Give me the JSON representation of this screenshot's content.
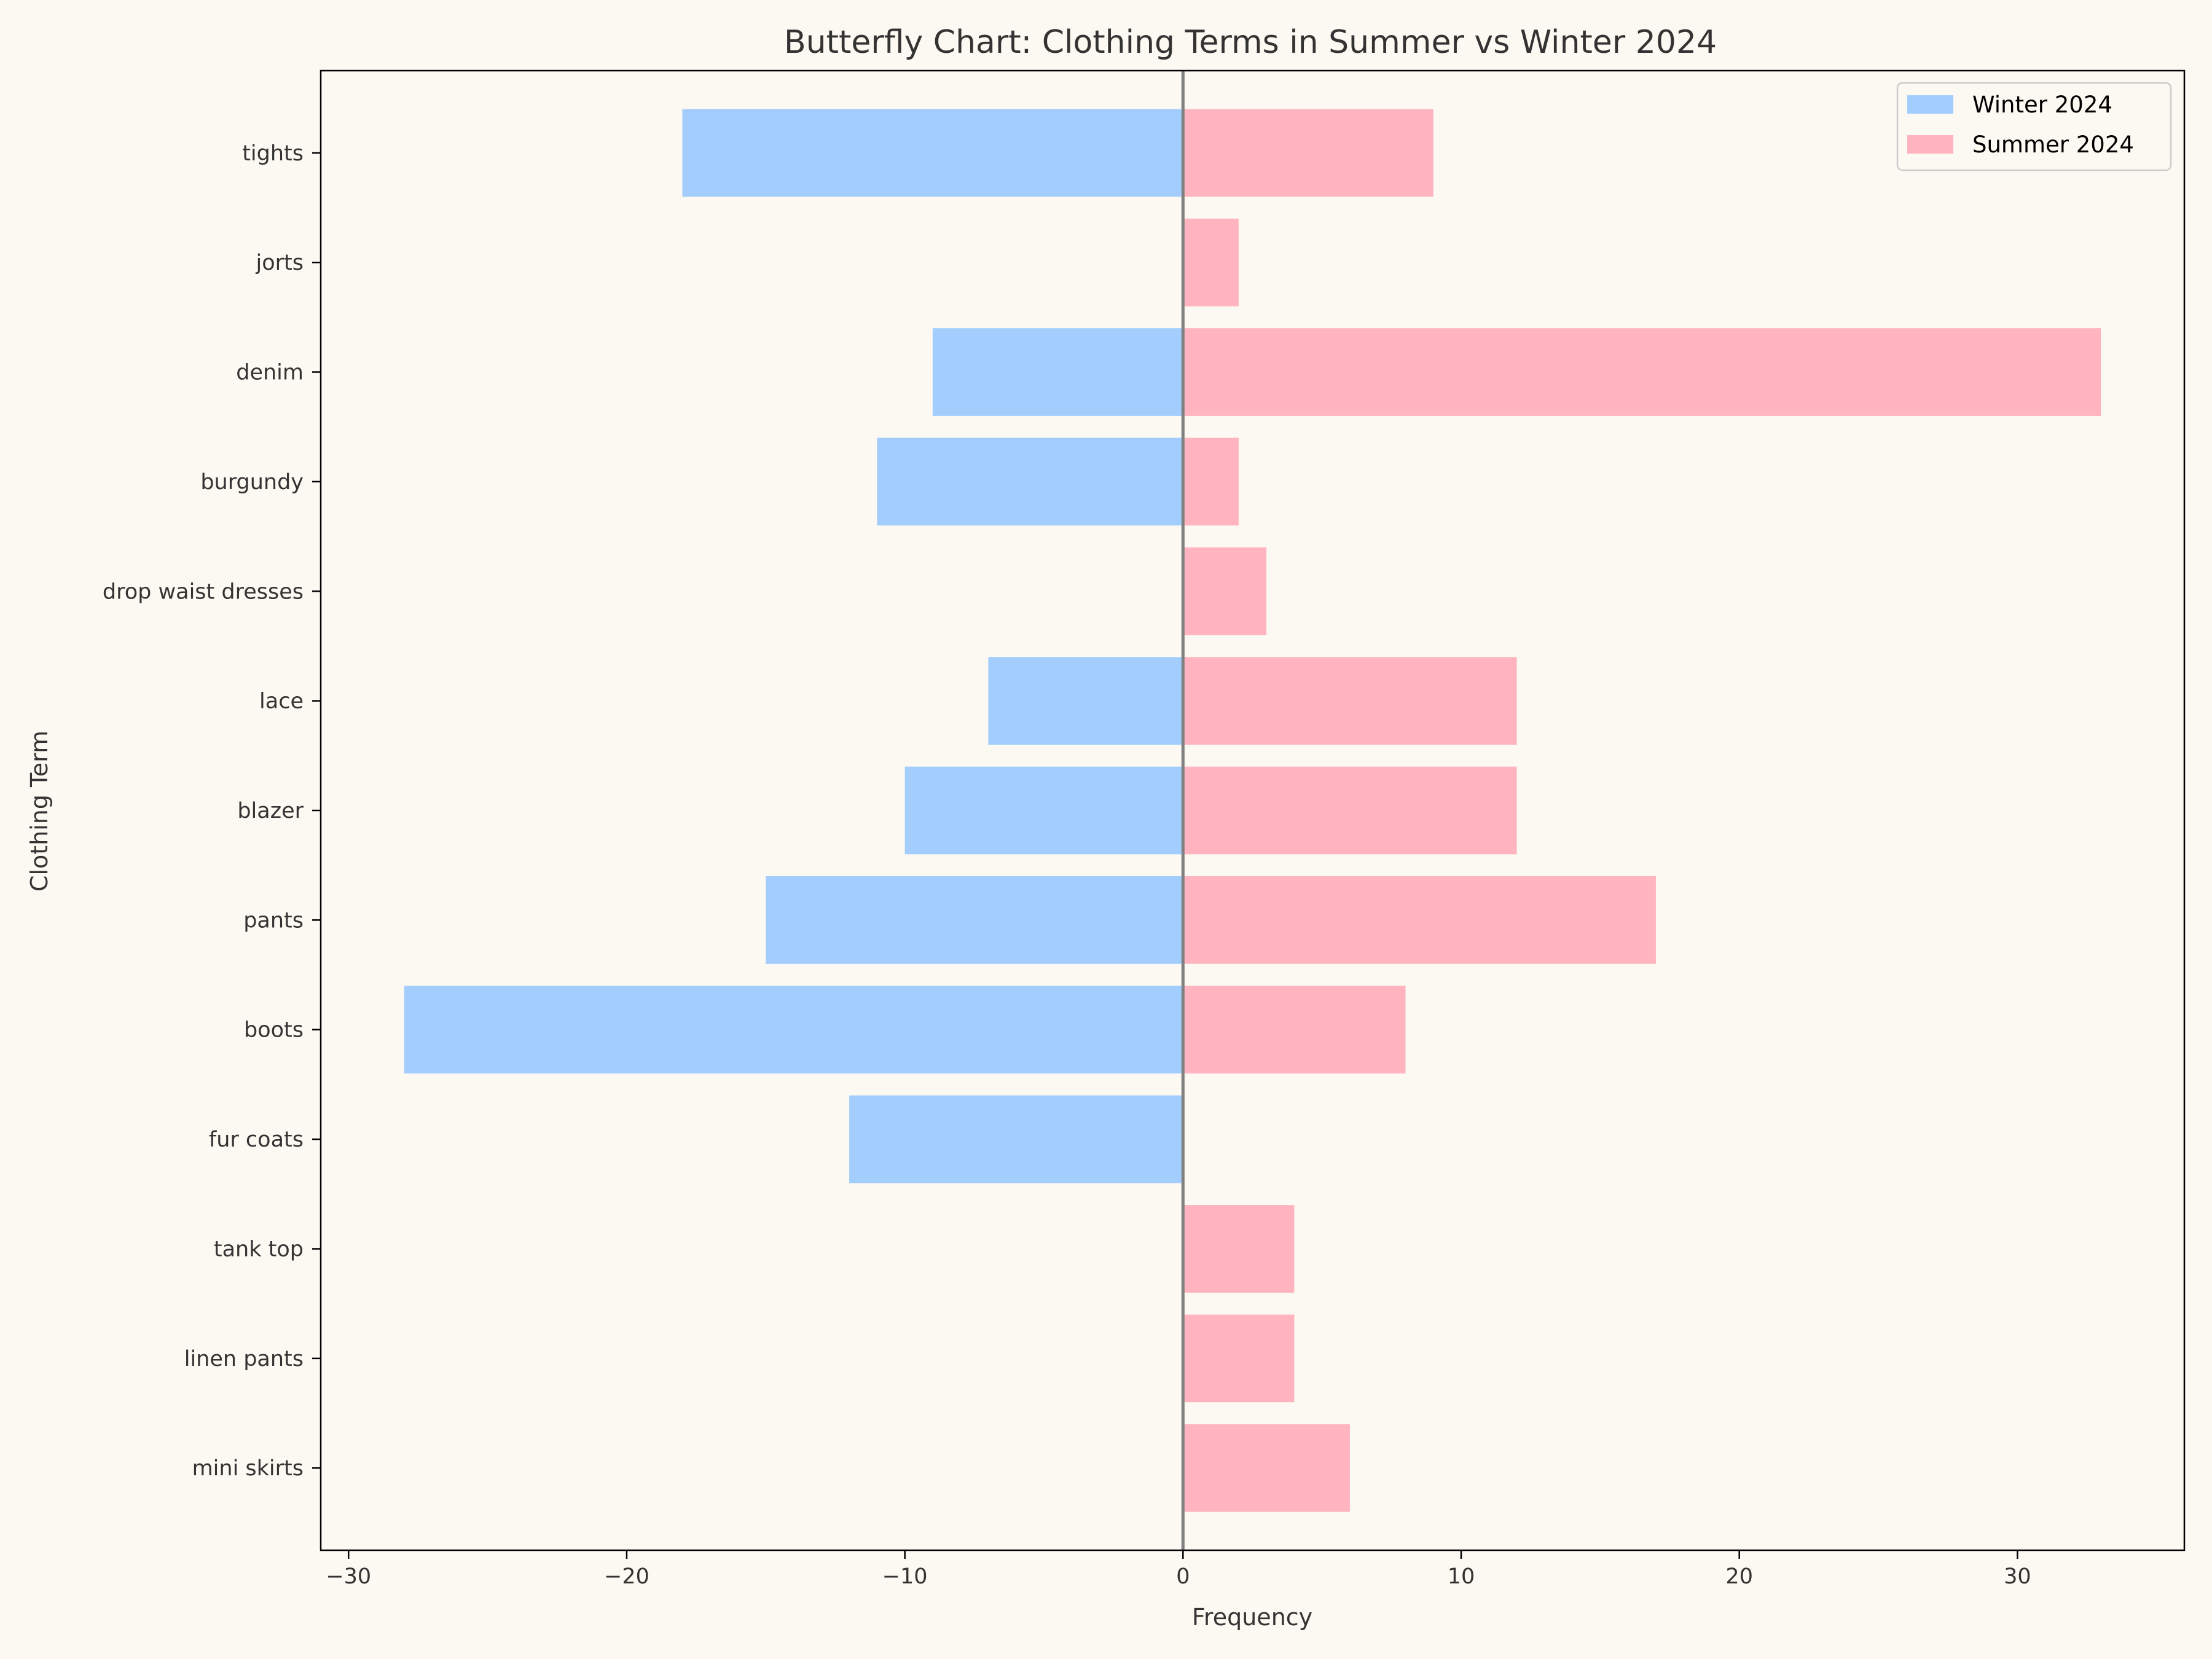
{
  "chart_data": {
    "type": "bar",
    "orientation": "horizontal-butterfly",
    "title": "Butterfly Chart: Clothing Terms in Summer vs Winter 2024",
    "xlabel": "Frequency",
    "ylabel": "Clothing Term",
    "xlim": [
      -31,
      36
    ],
    "xticks": [
      -30,
      -20,
      -10,
      0,
      10,
      20,
      30
    ],
    "xtick_labels": [
      "−30",
      "−20",
      "−10",
      "0",
      "10",
      "20",
      "30"
    ],
    "categories": [
      "tights",
      "jorts",
      "denim",
      "burgundy",
      "drop waist dresses",
      "lace",
      "blazer",
      "pants",
      "boots",
      "fur coats",
      "tank top",
      "linen pants",
      "mini skirts"
    ],
    "series": [
      {
        "name": "Winter 2024",
        "color": "#a3cdfd",
        "values": [
          -18,
          0,
          -9,
          -11,
          0,
          -7,
          -10,
          -15,
          -28,
          -12,
          0,
          0,
          0
        ]
      },
      {
        "name": "Summer 2024",
        "color": "#ffb4c0",
        "values": [
          9,
          2,
          33,
          2,
          3,
          12,
          12,
          17,
          8,
          0,
          4,
          4,
          6
        ]
      }
    ],
    "grid": false,
    "legend_position": "top-right",
    "zero_line_color": "#808080"
  }
}
